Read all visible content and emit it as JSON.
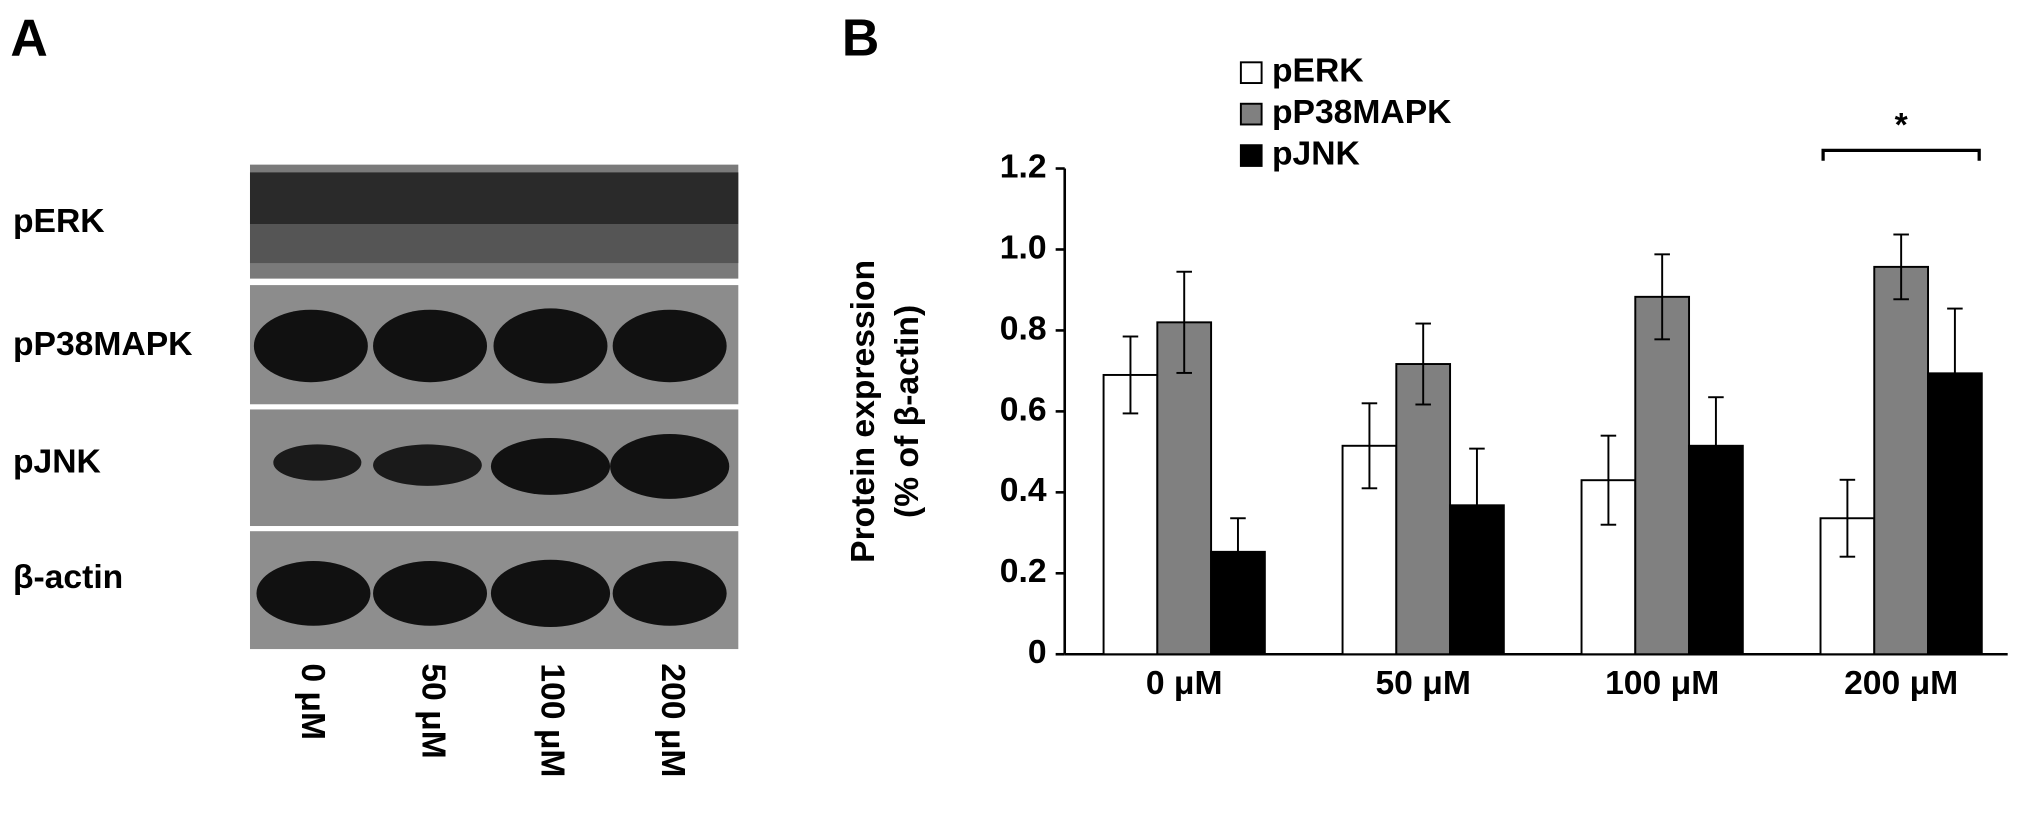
{
  "panels": {
    "a": "A",
    "b": "B"
  },
  "blot": {
    "rows": [
      "pERK",
      "pP38MAPK",
      "pJNK",
      "β-actin"
    ],
    "lanes": [
      "0 μM",
      "50 μM",
      "100 μM",
      "200 μM"
    ]
  },
  "chart_data": {
    "type": "bar",
    "ylabel": [
      "Protein expression",
      "(% of β-actin)"
    ],
    "categories": [
      "0 μM",
      "50 μM",
      "100 μM",
      "200 μM"
    ],
    "series": [
      {
        "name": "pERK",
        "color": "#ffffff",
        "values": [
          0.69,
          0.515,
          0.43,
          0.336
        ],
        "errors": [
          0.095,
          0.105,
          0.11,
          0.095
        ]
      },
      {
        "name": "pP38MAPK",
        "color": "#808080",
        "values": [
          0.82,
          0.717,
          0.883,
          0.957
        ],
        "errors": [
          0.125,
          0.1,
          0.105,
          0.08
        ]
      },
      {
        "name": "pJNK",
        "color": "#000000",
        "values": [
          0.253,
          0.368,
          0.515,
          0.694
        ],
        "errors": [
          0.083,
          0.14,
          0.12,
          0.16
        ]
      }
    ],
    "ylim": [
      0,
      1.2
    ],
    "yticks": [
      0,
      0.2,
      0.4,
      0.6,
      0.8,
      {
        "value": 1,
        "label": "1.0"
      },
      1.2
    ],
    "legend_position": "top-left",
    "annotations": [
      {
        "text": "*"
      }
    ]
  }
}
